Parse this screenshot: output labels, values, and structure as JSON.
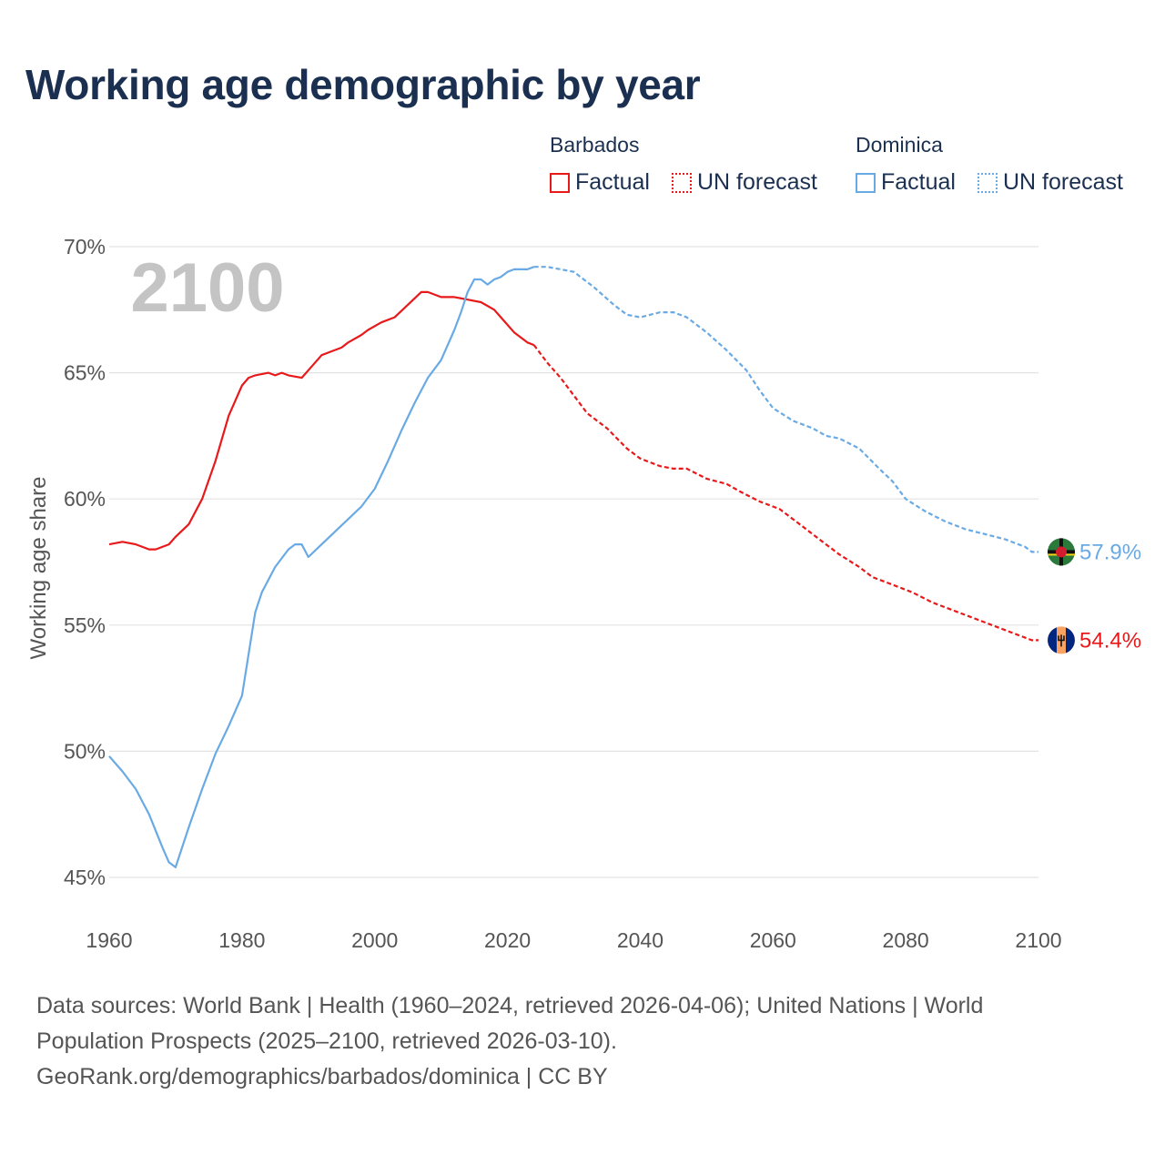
{
  "title": "Working age demographic by year",
  "legend": {
    "groups": [
      {
        "name": "Barbados",
        "color": "#e8191a",
        "factual_label": "Factual",
        "forecast_label": "UN forecast"
      },
      {
        "name": "Dominica",
        "color": "#6aaae4",
        "factual_label": "Factual",
        "forecast_label": "UN forecast"
      }
    ]
  },
  "year_label": "2100",
  "end_labels": {
    "barbados": "54.4%",
    "dominica": "57.9%"
  },
  "footer": {
    "line1": "Data sources: World Bank | Health (1960–2024, retrieved 2026-04-06); United Nations | World",
    "line2": "Population Prospects (2025–2100, retrieved 2026-03-10).",
    "line3": "GeoRank.org/demographics/barbados/dominica | CC BY"
  },
  "chart_data": {
    "type": "line",
    "title": "Working age demographic by year",
    "xlabel": "",
    "ylabel": "Working age share",
    "xlim": [
      1960,
      2100
    ],
    "ylim": [
      45,
      70
    ],
    "x_ticks": [
      1960,
      1980,
      2000,
      2020,
      2040,
      2060,
      2080,
      2100
    ],
    "x_tick_labels": [
      "1960",
      "1980",
      "2000",
      "2020",
      "2040",
      "2060",
      "2080",
      "2100"
    ],
    "y_ticks": [
      45,
      50,
      55,
      60,
      65,
      70
    ],
    "y_tick_labels": [
      "45%",
      "50%",
      "55%",
      "60%",
      "65%",
      "70%"
    ],
    "grid": true,
    "legend_position": "top-right",
    "forecast_start_year": 2024,
    "series": [
      {
        "name": "Barbados",
        "color": "#e8191a",
        "x": [
          1960,
          1962,
          1964,
          1966,
          1967,
          1969,
          1970,
          1972,
          1974,
          1976,
          1978,
          1980,
          1981,
          1982,
          1984,
          1985,
          1986,
          1987,
          1989,
          1990,
          1992,
          1993,
          1995,
          1996,
          1998,
          1999,
          2001,
          2003,
          2005,
          2007,
          2008,
          2010,
          2012,
          2014,
          2016,
          2018,
          2019,
          2021,
          2023,
          2024,
          2026,
          2028,
          2030,
          2032,
          2035,
          2038,
          2040,
          2043,
          2045,
          2047,
          2050,
          2053,
          2055,
          2058,
          2061,
          2064,
          2067,
          2070,
          2073,
          2075,
          2078,
          2081,
          2084,
          2087,
          2090,
          2093,
          2096,
          2099,
          2100
        ],
        "values": [
          58.2,
          58.3,
          58.2,
          58.0,
          58.0,
          58.2,
          58.5,
          59.0,
          60.0,
          61.5,
          63.3,
          64.5,
          64.8,
          64.9,
          65.0,
          64.9,
          65.0,
          64.9,
          64.8,
          65.1,
          65.7,
          65.8,
          66.0,
          66.2,
          66.5,
          66.7,
          67.0,
          67.2,
          67.7,
          68.2,
          68.2,
          68.0,
          68.0,
          67.9,
          67.8,
          67.5,
          67.2,
          66.6,
          66.2,
          66.1,
          65.4,
          64.8,
          64.1,
          63.4,
          62.8,
          62.0,
          61.6,
          61.3,
          61.2,
          61.2,
          60.8,
          60.6,
          60.3,
          59.9,
          59.6,
          59.0,
          58.4,
          57.8,
          57.3,
          56.9,
          56.6,
          56.3,
          55.9,
          55.6,
          55.3,
          55.0,
          54.7,
          54.4,
          54.4
        ]
      },
      {
        "name": "Dominica",
        "color": "#6aaae4",
        "x": [
          1960,
          1962,
          1964,
          1966,
          1968,
          1969,
          1970,
          1972,
          1974,
          1976,
          1978,
          1980,
          1982,
          1983,
          1985,
          1987,
          1988,
          1989,
          1990,
          1992,
          1994,
          1996,
          1998,
          2000,
          2002,
          2004,
          2006,
          2008,
          2010,
          2012,
          2013,
          2014,
          2015,
          2016,
          2017,
          2018,
          2019,
          2020,
          2021,
          2022,
          2023,
          2024,
          2026,
          2028,
          2030,
          2033,
          2036,
          2038,
          2040,
          2043,
          2045,
          2047,
          2050,
          2053,
          2056,
          2058,
          2060,
          2063,
          2066,
          2068,
          2070,
          2073,
          2076,
          2078,
          2080,
          2083,
          2086,
          2089,
          2092,
          2095,
          2098,
          2099,
          2100
        ],
        "values": [
          49.8,
          49.2,
          48.5,
          47.5,
          46.2,
          45.6,
          45.4,
          47.0,
          48.5,
          49.9,
          51.0,
          52.2,
          55.5,
          56.3,
          57.3,
          58.0,
          58.2,
          58.2,
          57.7,
          58.2,
          58.7,
          59.2,
          59.7,
          60.4,
          61.5,
          62.7,
          63.8,
          64.8,
          65.5,
          66.7,
          67.4,
          68.2,
          68.7,
          68.7,
          68.5,
          68.7,
          68.8,
          69.0,
          69.1,
          69.1,
          69.1,
          69.2,
          69.2,
          69.1,
          69.0,
          68.4,
          67.7,
          67.3,
          67.2,
          67.4,
          67.4,
          67.2,
          66.6,
          65.9,
          65.1,
          64.3,
          63.6,
          63.1,
          62.8,
          62.5,
          62.4,
          62.0,
          61.2,
          60.7,
          60.0,
          59.5,
          59.1,
          58.8,
          58.6,
          58.4,
          58.1,
          57.9,
          57.9
        ]
      }
    ]
  }
}
